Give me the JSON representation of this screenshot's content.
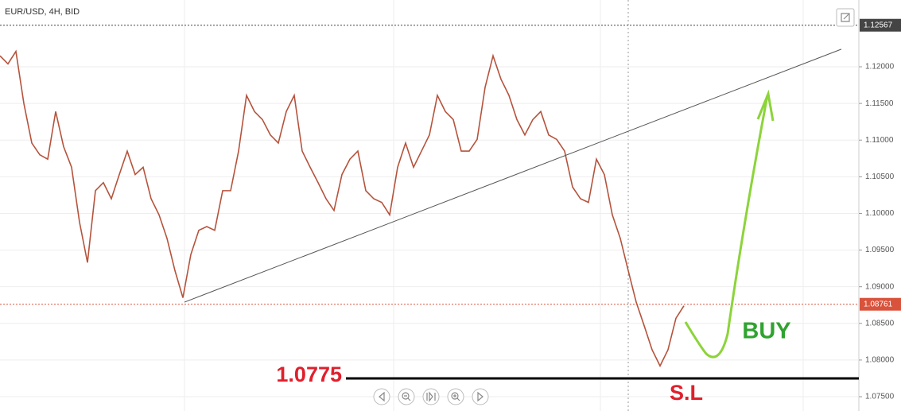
{
  "chart_data": {
    "type": "line",
    "title": "EUR/USD, 4H, BID",
    "xlim": [
      0,
      108
    ],
    "ylim": [
      1.07305,
      1.12911
    ],
    "yticks": [
      {
        "value": 1.075,
        "label": "1.07500"
      },
      {
        "value": 1.08,
        "label": "1.08000"
      },
      {
        "value": 1.085,
        "label": "1.08500"
      },
      {
        "value": 1.09,
        "label": "1.09000"
      },
      {
        "value": 1.095,
        "label": "1.09500"
      },
      {
        "value": 1.1,
        "label": "1.10000"
      },
      {
        "value": 1.105,
        "label": "1.10500"
      },
      {
        "value": 1.11,
        "label": "1.11000"
      },
      {
        "value": 1.115,
        "label": "1.11500"
      },
      {
        "value": 1.12,
        "label": "1.12000"
      }
    ],
    "series": [
      {
        "name": "EUR/USD",
        "color": "#b5533c",
        "x": [
          0,
          1,
          2,
          3,
          4,
          5,
          6,
          7,
          8,
          9,
          10,
          11,
          12,
          13,
          14,
          15,
          16,
          17,
          18,
          19,
          20,
          21,
          22,
          23,
          24,
          25,
          26,
          27,
          28,
          29,
          30,
          31,
          32,
          33,
          34,
          35,
          36,
          37,
          38,
          39,
          40,
          41,
          42,
          43,
          44,
          45,
          46,
          47,
          48,
          49,
          50,
          51,
          52,
          53,
          54,
          55,
          56,
          57,
          58,
          59,
          60,
          61,
          62,
          63,
          64,
          65,
          66,
          67,
          68,
          69,
          70,
          71,
          72,
          73,
          74,
          75,
          76,
          77,
          78,
          79,
          80,
          81,
          82,
          83,
          84,
          85,
          86
        ],
        "values": [
          1.1215,
          1.1204,
          1.1221,
          1.115,
          1.1096,
          1.108,
          1.1074,
          1.1139,
          1.1091,
          1.1063,
          1.0988,
          1.0933,
          1.1031,
          1.1042,
          1.102,
          1.1053,
          1.1085,
          1.1053,
          1.1063,
          1.102,
          1.0998,
          1.0966,
          1.0922,
          1.0885,
          1.0944,
          1.0977,
          1.0982,
          1.0977,
          1.1031,
          1.1031,
          1.1085,
          1.1161,
          1.1139,
          1.1128,
          1.1107,
          1.1096,
          1.1139,
          1.1161,
          1.1085,
          1.1063,
          1.1042,
          1.102,
          1.1004,
          1.1053,
          1.1074,
          1.1085,
          1.1031,
          1.102,
          1.1015,
          1.0998,
          1.1063,
          1.1096,
          1.1063,
          1.1085,
          1.1107,
          1.1161,
          1.1139,
          1.1128,
          1.1085,
          1.1085,
          1.1101,
          1.1172,
          1.1215,
          1.1183,
          1.1161,
          1.1128,
          1.1107,
          1.1128,
          1.1139,
          1.1107,
          1.1101,
          1.1085,
          1.1036,
          1.102,
          1.1015,
          1.1074,
          1.1053,
          1.0998,
          1.0966,
          1.0922,
          1.0879,
          1.0847,
          1.0814,
          1.0792,
          1.0814,
          1.0857,
          1.0874
        ]
      }
    ],
    "trend_line": {
      "x": [
        23.2,
        105.8
      ],
      "values": [
        1.0879,
        1.1224
      ],
      "color": "#555555"
    },
    "price_markers": [
      {
        "value": 1.12567,
        "label": "1.12567",
        "color": "#444444"
      },
      {
        "value": 1.08761,
        "label": "1.08761",
        "color": "#d9533c"
      }
    ],
    "stop_loss": {
      "value": 1.0775,
      "text": "S.L",
      "color": "#e0202c"
    },
    "buy_label": {
      "text": "BUY",
      "color": "#2fa32f"
    }
  }
}
